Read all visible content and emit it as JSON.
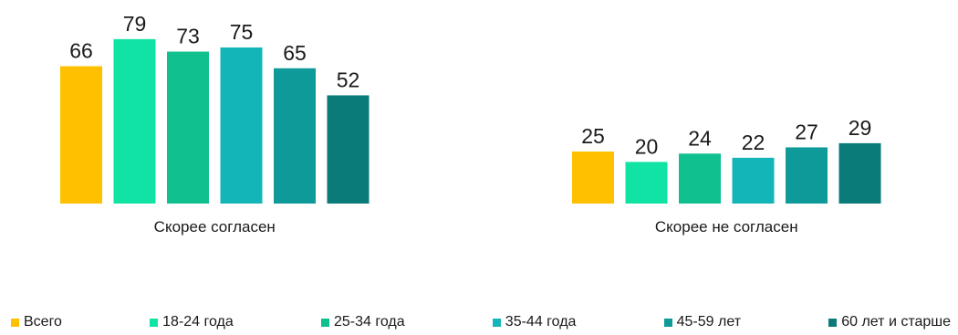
{
  "chart_data": {
    "type": "bar",
    "categories": [
      "Скорее согласен",
      "Скорее не согласен"
    ],
    "series": [
      {
        "name": "Всего",
        "color": "#FFC000",
        "values": [
          66,
          25
        ]
      },
      {
        "name": "18-24 года",
        "color": "#11E3A4",
        "values": [
          79,
          20
        ]
      },
      {
        "name": "25-34 года",
        "color": "#10C08E",
        "values": [
          73,
          24
        ]
      },
      {
        "name": "35-44 года",
        "color": "#14B5B8",
        "values": [
          75,
          22
        ]
      },
      {
        "name": "45-59 лет",
        "color": "#0F9A9A",
        "values": [
          65,
          27
        ]
      },
      {
        "name": "60 лет и старше",
        "color": "#0A7B78",
        "values": [
          52,
          29
        ]
      }
    ],
    "ylim": [
      0,
      80
    ],
    "grid": false,
    "legend_position": "bottom",
    "data_labels": true
  }
}
